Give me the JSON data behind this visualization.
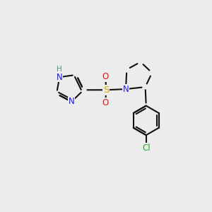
{
  "background_color": "#ececec",
  "bond_color": "#111111",
  "bond_lw": 1.5,
  "atom_colors": {
    "N": "#1818ff",
    "H": "#4a8a8a",
    "S": "#ddaa00",
    "O": "#ee1111",
    "Cl": "#22aa22",
    "C": "#111111"
  },
  "fig_w": 3.0,
  "fig_h": 3.0,
  "dpi": 100,
  "xlim": [
    0,
    10
  ],
  "ylim": [
    0,
    10
  ],
  "lfs": 8.5,
  "hfs": 7.5,
  "sfs": 9.5
}
